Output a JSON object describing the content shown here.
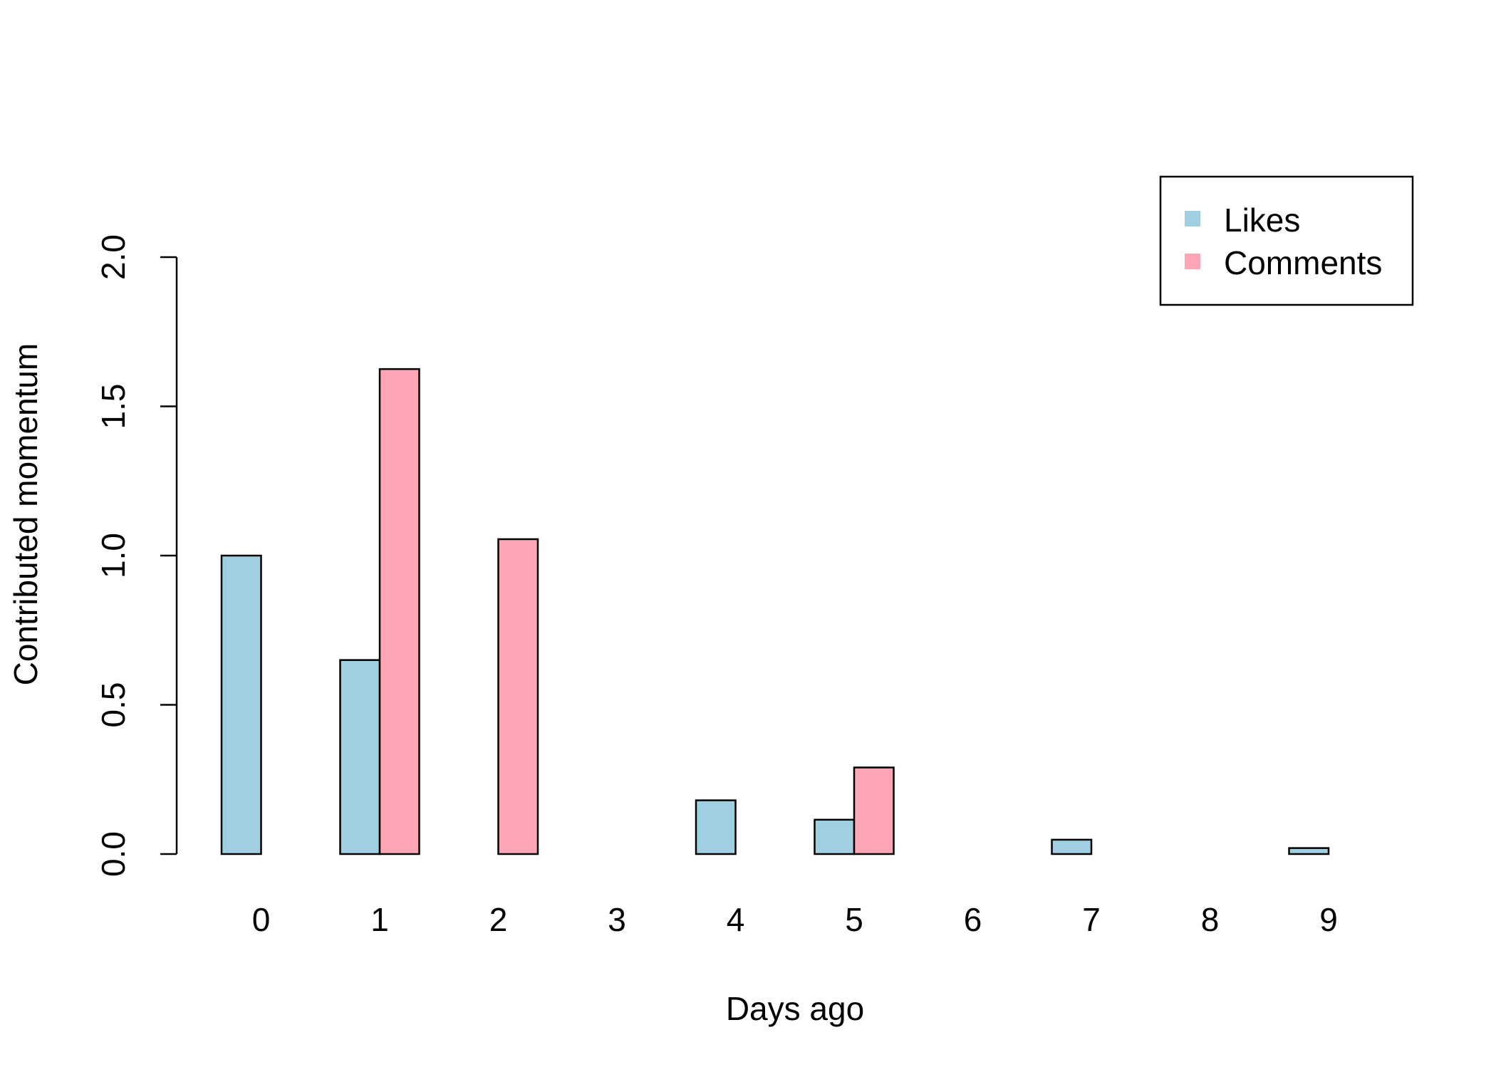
{
  "chart_data": {
    "type": "bar",
    "xlabel": "Days ago",
    "ylabel": "Contributed momentum",
    "categories": [
      "0",
      "1",
      "2",
      "3",
      "4",
      "5",
      "6",
      "7",
      "8",
      "9"
    ],
    "series": [
      {
        "name": "Likes",
        "color": "#a0cfe1",
        "values": [
          1.0,
          0.65,
          0.0,
          0.0,
          0.18,
          0.115,
          0.0,
          0.048,
          0.0,
          0.02
        ]
      },
      {
        "name": "Comments",
        "color": "#fca5b4",
        "values": [
          0.0,
          1.625,
          1.055,
          0.0,
          0.0,
          0.29,
          0.0,
          0.0,
          0.0,
          0.0
        ]
      }
    ],
    "ylim": [
      0,
      2
    ],
    "yticks": [
      "0.0",
      "0.5",
      "1.0",
      "1.5",
      "2.0"
    ],
    "ytick_values": [
      0,
      0.5,
      1,
      1.5,
      2
    ],
    "legend_position": "top-right",
    "grid": false
  }
}
